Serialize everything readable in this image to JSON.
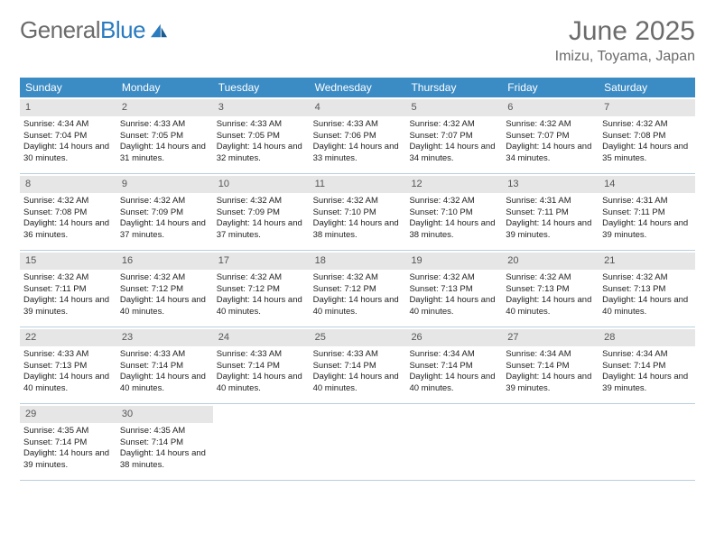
{
  "logo": {
    "text1": "General",
    "text2": "Blue"
  },
  "title": "June 2025",
  "location": "Imizu, Toyama, Japan",
  "theme": {
    "header_bg": "#3b8bc4",
    "header_text": "#ffffff",
    "daynum_bg": "#e6e6e6",
    "border": "#b9cfdf",
    "text": "#222222",
    "muted": "#6b6b6b"
  },
  "daynames": [
    "Sunday",
    "Monday",
    "Tuesday",
    "Wednesday",
    "Thursday",
    "Friday",
    "Saturday"
  ],
  "weeks": [
    [
      {
        "n": "1",
        "sr": "4:34 AM",
        "ss": "7:04 PM",
        "dl": "14 hours and 30 minutes."
      },
      {
        "n": "2",
        "sr": "4:33 AM",
        "ss": "7:05 PM",
        "dl": "14 hours and 31 minutes."
      },
      {
        "n": "3",
        "sr": "4:33 AM",
        "ss": "7:05 PM",
        "dl": "14 hours and 32 minutes."
      },
      {
        "n": "4",
        "sr": "4:33 AM",
        "ss": "7:06 PM",
        "dl": "14 hours and 33 minutes."
      },
      {
        "n": "5",
        "sr": "4:32 AM",
        "ss": "7:07 PM",
        "dl": "14 hours and 34 minutes."
      },
      {
        "n": "6",
        "sr": "4:32 AM",
        "ss": "7:07 PM",
        "dl": "14 hours and 34 minutes."
      },
      {
        "n": "7",
        "sr": "4:32 AM",
        "ss": "7:08 PM",
        "dl": "14 hours and 35 minutes."
      }
    ],
    [
      {
        "n": "8",
        "sr": "4:32 AM",
        "ss": "7:08 PM",
        "dl": "14 hours and 36 minutes."
      },
      {
        "n": "9",
        "sr": "4:32 AM",
        "ss": "7:09 PM",
        "dl": "14 hours and 37 minutes."
      },
      {
        "n": "10",
        "sr": "4:32 AM",
        "ss": "7:09 PM",
        "dl": "14 hours and 37 minutes."
      },
      {
        "n": "11",
        "sr": "4:32 AM",
        "ss": "7:10 PM",
        "dl": "14 hours and 38 minutes."
      },
      {
        "n": "12",
        "sr": "4:32 AM",
        "ss": "7:10 PM",
        "dl": "14 hours and 38 minutes."
      },
      {
        "n": "13",
        "sr": "4:31 AM",
        "ss": "7:11 PM",
        "dl": "14 hours and 39 minutes."
      },
      {
        "n": "14",
        "sr": "4:31 AM",
        "ss": "7:11 PM",
        "dl": "14 hours and 39 minutes."
      }
    ],
    [
      {
        "n": "15",
        "sr": "4:32 AM",
        "ss": "7:11 PM",
        "dl": "14 hours and 39 minutes."
      },
      {
        "n": "16",
        "sr": "4:32 AM",
        "ss": "7:12 PM",
        "dl": "14 hours and 40 minutes."
      },
      {
        "n": "17",
        "sr": "4:32 AM",
        "ss": "7:12 PM",
        "dl": "14 hours and 40 minutes."
      },
      {
        "n": "18",
        "sr": "4:32 AM",
        "ss": "7:12 PM",
        "dl": "14 hours and 40 minutes."
      },
      {
        "n": "19",
        "sr": "4:32 AM",
        "ss": "7:13 PM",
        "dl": "14 hours and 40 minutes."
      },
      {
        "n": "20",
        "sr": "4:32 AM",
        "ss": "7:13 PM",
        "dl": "14 hours and 40 minutes."
      },
      {
        "n": "21",
        "sr": "4:32 AM",
        "ss": "7:13 PM",
        "dl": "14 hours and 40 minutes."
      }
    ],
    [
      {
        "n": "22",
        "sr": "4:33 AM",
        "ss": "7:13 PM",
        "dl": "14 hours and 40 minutes."
      },
      {
        "n": "23",
        "sr": "4:33 AM",
        "ss": "7:14 PM",
        "dl": "14 hours and 40 minutes."
      },
      {
        "n": "24",
        "sr": "4:33 AM",
        "ss": "7:14 PM",
        "dl": "14 hours and 40 minutes."
      },
      {
        "n": "25",
        "sr": "4:33 AM",
        "ss": "7:14 PM",
        "dl": "14 hours and 40 minutes."
      },
      {
        "n": "26",
        "sr": "4:34 AM",
        "ss": "7:14 PM",
        "dl": "14 hours and 40 minutes."
      },
      {
        "n": "27",
        "sr": "4:34 AM",
        "ss": "7:14 PM",
        "dl": "14 hours and 39 minutes."
      },
      {
        "n": "28",
        "sr": "4:34 AM",
        "ss": "7:14 PM",
        "dl": "14 hours and 39 minutes."
      }
    ],
    [
      {
        "n": "29",
        "sr": "4:35 AM",
        "ss": "7:14 PM",
        "dl": "14 hours and 39 minutes."
      },
      {
        "n": "30",
        "sr": "4:35 AM",
        "ss": "7:14 PM",
        "dl": "14 hours and 38 minutes."
      },
      null,
      null,
      null,
      null,
      null
    ]
  ],
  "labels": {
    "sunrise": "Sunrise:",
    "sunset": "Sunset:",
    "daylight": "Daylight:"
  }
}
